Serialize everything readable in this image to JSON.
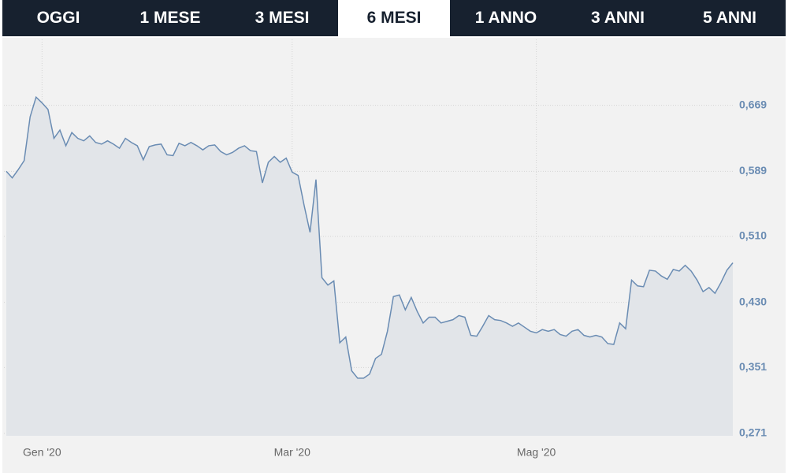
{
  "tabs": {
    "items": [
      "OGGI",
      "1 MESE",
      "3 MESI",
      "6 MESI",
      "1 ANNO",
      "3 ANNI",
      "5 ANNI"
    ],
    "active_index": 3
  },
  "chart_data": {
    "type": "area",
    "color": "#6a8cb3",
    "fill": "#e2e5e9",
    "grid": true,
    "categories": [
      null,
      null,
      null,
      null,
      null,
      null,
      "Gen '20",
      null,
      null,
      null,
      null,
      null,
      null,
      null,
      null,
      null,
      null,
      null,
      null,
      null,
      null,
      null,
      null,
      null,
      null,
      null,
      null,
      null,
      null,
      null,
      null,
      null,
      null,
      null,
      null,
      null,
      null,
      null,
      null,
      null,
      null,
      null,
      null,
      null,
      null,
      null,
      null,
      null,
      "Mar '20",
      null,
      null,
      null,
      null,
      null,
      null,
      null,
      null,
      null,
      null,
      null,
      null,
      null,
      null,
      null,
      null,
      null,
      null,
      null,
      null,
      null,
      null,
      null,
      null,
      null,
      null,
      null,
      null,
      null,
      null,
      null,
      null,
      null,
      null,
      null,
      null,
      null,
      null,
      null,
      null,
      "Mag '20",
      null,
      null,
      null,
      null,
      null,
      null,
      null,
      null,
      null,
      null,
      null,
      null,
      null,
      null,
      null,
      null,
      null,
      null,
      null,
      null,
      null,
      null,
      null,
      null,
      null,
      null,
      null,
      null,
      null,
      null,
      null,
      null,
      null
    ],
    "values": [
      0.589,
      0.581,
      0.591,
      0.602,
      0.655,
      0.679,
      0.672,
      0.664,
      0.629,
      0.639,
      0.62,
      0.636,
      0.629,
      0.626,
      0.632,
      0.624,
      0.622,
      0.626,
      0.622,
      0.617,
      0.629,
      0.624,
      0.62,
      0.603,
      0.619,
      0.621,
      0.622,
      0.609,
      0.608,
      0.623,
      0.62,
      0.624,
      0.62,
      0.615,
      0.62,
      0.621,
      0.613,
      0.609,
      0.612,
      0.617,
      0.62,
      0.614,
      0.613,
      0.575,
      0.6,
      0.607,
      0.6,
      0.605,
      0.588,
      0.584,
      0.548,
      0.515,
      0.579,
      0.46,
      0.451,
      0.456,
      0.381,
      0.388,
      0.347,
      0.338,
      0.338,
      0.343,
      0.362,
      0.367,
      0.395,
      0.437,
      0.439,
      0.421,
      0.436,
      0.419,
      0.405,
      0.412,
      0.412,
      0.405,
      0.407,
      0.409,
      0.414,
      0.412,
      0.39,
      0.389,
      0.401,
      0.414,
      0.409,
      0.408,
      0.405,
      0.401,
      0.405,
      0.4,
      0.395,
      0.393,
      0.397,
      0.395,
      0.397,
      0.391,
      0.389,
      0.395,
      0.397,
      0.39,
      0.388,
      0.39,
      0.388,
      0.38,
      0.379,
      0.405,
      0.398,
      0.457,
      0.45,
      0.449,
      0.469,
      0.468,
      0.462,
      0.458,
      0.47,
      0.468,
      0.475,
      0.468,
      0.457,
      0.443,
      0.448,
      0.441,
      0.454,
      0.469,
      0.478
    ],
    "ylim": [
      0.271,
      0.749
    ],
    "yticks": [
      {
        "value": 0.271,
        "label": "0,271"
      },
      {
        "value": 0.351,
        "label": "0,351"
      },
      {
        "value": 0.43,
        "label": "0,430"
      },
      {
        "value": 0.51,
        "label": "0,510"
      },
      {
        "value": 0.589,
        "label": "0,589"
      },
      {
        "value": 0.669,
        "label": "0,669"
      }
    ]
  }
}
